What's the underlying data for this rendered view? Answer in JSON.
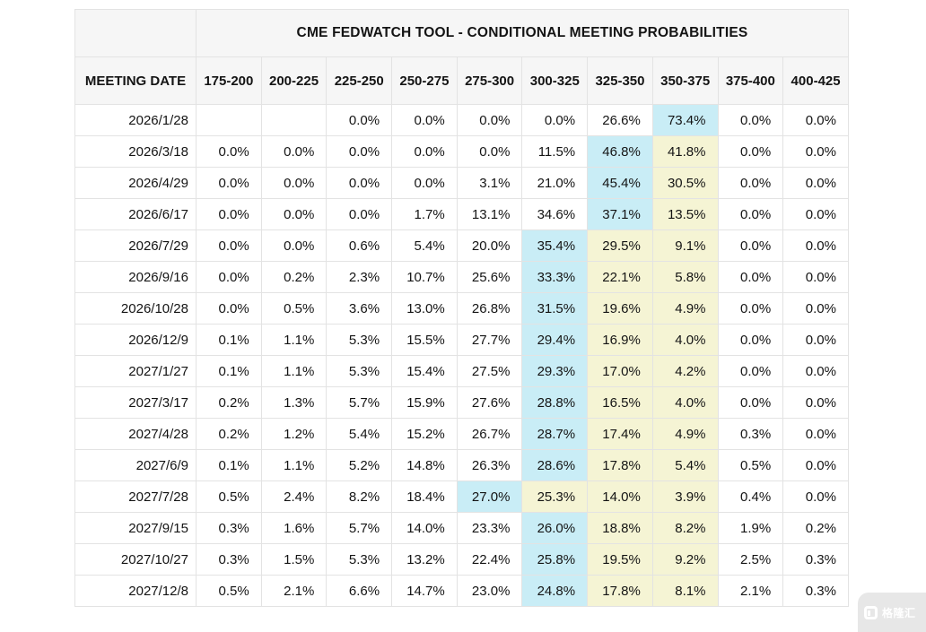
{
  "colors": {
    "header_bg": "#f6f6f6",
    "border": "#e3e3e3",
    "text": "#141414",
    "highlight_cyan": "#c9edf6",
    "highlight_yellow": "#f5f4d4",
    "watermark_bg": "#e7e7e7",
    "watermark_fg": "#ffffff"
  },
  "chart_data": {
    "type": "table",
    "title": "CME FEDWATCH TOOL - CONDITIONAL MEETING PROBABILITIES",
    "row_header_label": "MEETING DATE",
    "columns": [
      "175-200",
      "200-225",
      "225-250",
      "250-275",
      "275-300",
      "300-325",
      "325-350",
      "350-375",
      "375-400",
      "400-425"
    ],
    "rows": [
      {
        "date": "2026/1/28",
        "values": [
          "",
          "",
          "0.0%",
          "0.0%",
          "0.0%",
          "0.0%",
          "26.6%",
          "73.4%",
          "0.0%",
          "0.0%"
        ],
        "highlights": [
          "",
          "",
          "",
          "",
          "",
          "",
          "",
          "cyan",
          "",
          ""
        ]
      },
      {
        "date": "2026/3/18",
        "values": [
          "0.0%",
          "0.0%",
          "0.0%",
          "0.0%",
          "0.0%",
          "11.5%",
          "46.8%",
          "41.8%",
          "0.0%",
          "0.0%"
        ],
        "highlights": [
          "",
          "",
          "",
          "",
          "",
          "",
          "cyan",
          "yellow",
          "",
          ""
        ]
      },
      {
        "date": "2026/4/29",
        "values": [
          "0.0%",
          "0.0%",
          "0.0%",
          "0.0%",
          "3.1%",
          "21.0%",
          "45.4%",
          "30.5%",
          "0.0%",
          "0.0%"
        ],
        "highlights": [
          "",
          "",
          "",
          "",
          "",
          "",
          "cyan",
          "yellow",
          "",
          ""
        ]
      },
      {
        "date": "2026/6/17",
        "values": [
          "0.0%",
          "0.0%",
          "0.0%",
          "1.7%",
          "13.1%",
          "34.6%",
          "37.1%",
          "13.5%",
          "0.0%",
          "0.0%"
        ],
        "highlights": [
          "",
          "",
          "",
          "",
          "",
          "",
          "cyan",
          "yellow",
          "",
          ""
        ]
      },
      {
        "date": "2026/7/29",
        "values": [
          "0.0%",
          "0.0%",
          "0.6%",
          "5.4%",
          "20.0%",
          "35.4%",
          "29.5%",
          "9.1%",
          "0.0%",
          "0.0%"
        ],
        "highlights": [
          "",
          "",
          "",
          "",
          "",
          "cyan",
          "yellow",
          "yellow",
          "",
          ""
        ]
      },
      {
        "date": "2026/9/16",
        "values": [
          "0.0%",
          "0.2%",
          "2.3%",
          "10.7%",
          "25.6%",
          "33.3%",
          "22.1%",
          "5.8%",
          "0.0%",
          "0.0%"
        ],
        "highlights": [
          "",
          "",
          "",
          "",
          "",
          "cyan",
          "yellow",
          "yellow",
          "",
          ""
        ]
      },
      {
        "date": "2026/10/28",
        "values": [
          "0.0%",
          "0.5%",
          "3.6%",
          "13.0%",
          "26.8%",
          "31.5%",
          "19.6%",
          "4.9%",
          "0.0%",
          "0.0%"
        ],
        "highlights": [
          "",
          "",
          "",
          "",
          "",
          "cyan",
          "yellow",
          "yellow",
          "",
          ""
        ]
      },
      {
        "date": "2026/12/9",
        "values": [
          "0.1%",
          "1.1%",
          "5.3%",
          "15.5%",
          "27.7%",
          "29.4%",
          "16.9%",
          "4.0%",
          "0.0%",
          "0.0%"
        ],
        "highlights": [
          "",
          "",
          "",
          "",
          "",
          "cyan",
          "yellow",
          "yellow",
          "",
          ""
        ]
      },
      {
        "date": "2027/1/27",
        "values": [
          "0.1%",
          "1.1%",
          "5.3%",
          "15.4%",
          "27.5%",
          "29.3%",
          "17.0%",
          "4.2%",
          "0.0%",
          "0.0%"
        ],
        "highlights": [
          "",
          "",
          "",
          "",
          "",
          "cyan",
          "yellow",
          "yellow",
          "",
          ""
        ]
      },
      {
        "date": "2027/3/17",
        "values": [
          "0.2%",
          "1.3%",
          "5.7%",
          "15.9%",
          "27.6%",
          "28.8%",
          "16.5%",
          "4.0%",
          "0.0%",
          "0.0%"
        ],
        "highlights": [
          "",
          "",
          "",
          "",
          "",
          "cyan",
          "yellow",
          "yellow",
          "",
          ""
        ]
      },
      {
        "date": "2027/4/28",
        "values": [
          "0.2%",
          "1.2%",
          "5.4%",
          "15.2%",
          "26.7%",
          "28.7%",
          "17.4%",
          "4.9%",
          "0.3%",
          "0.0%"
        ],
        "highlights": [
          "",
          "",
          "",
          "",
          "",
          "cyan",
          "yellow",
          "yellow",
          "",
          ""
        ]
      },
      {
        "date": "2027/6/9",
        "values": [
          "0.1%",
          "1.1%",
          "5.2%",
          "14.8%",
          "26.3%",
          "28.6%",
          "17.8%",
          "5.4%",
          "0.5%",
          "0.0%"
        ],
        "highlights": [
          "",
          "",
          "",
          "",
          "",
          "cyan",
          "yellow",
          "yellow",
          "",
          ""
        ]
      },
      {
        "date": "2027/7/28",
        "values": [
          "0.5%",
          "2.4%",
          "8.2%",
          "18.4%",
          "27.0%",
          "25.3%",
          "14.0%",
          "3.9%",
          "0.4%",
          "0.0%"
        ],
        "highlights": [
          "",
          "",
          "",
          "",
          "cyan",
          "yellow",
          "yellow",
          "yellow",
          "",
          ""
        ]
      },
      {
        "date": "2027/9/15",
        "values": [
          "0.3%",
          "1.6%",
          "5.7%",
          "14.0%",
          "23.3%",
          "26.0%",
          "18.8%",
          "8.2%",
          "1.9%",
          "0.2%"
        ],
        "highlights": [
          "",
          "",
          "",
          "",
          "",
          "cyan",
          "yellow",
          "yellow",
          "",
          ""
        ]
      },
      {
        "date": "2027/10/27",
        "values": [
          "0.3%",
          "1.5%",
          "5.3%",
          "13.2%",
          "22.4%",
          "25.8%",
          "19.5%",
          "9.2%",
          "2.5%",
          "0.3%"
        ],
        "highlights": [
          "",
          "",
          "",
          "",
          "",
          "cyan",
          "yellow",
          "yellow",
          "",
          ""
        ]
      },
      {
        "date": "2027/12/8",
        "values": [
          "0.5%",
          "2.1%",
          "6.6%",
          "14.7%",
          "23.0%",
          "24.8%",
          "17.8%",
          "8.1%",
          "2.1%",
          "0.3%"
        ],
        "highlights": [
          "",
          "",
          "",
          "",
          "",
          "cyan",
          "yellow",
          "yellow",
          "",
          ""
        ]
      }
    ]
  },
  "watermark": {
    "text": "格隆汇"
  }
}
